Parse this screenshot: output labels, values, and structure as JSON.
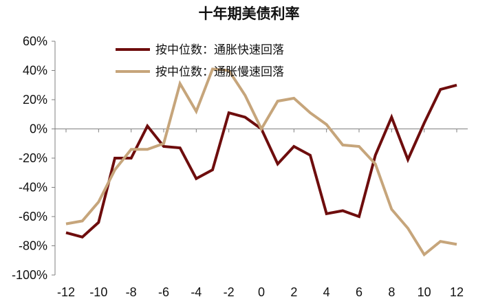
{
  "chart_data": {
    "type": "line",
    "title": "十年期美债利率",
    "xlabel": "",
    "ylabel": "",
    "x": [
      -12,
      -11,
      -10,
      -9,
      -8,
      -7,
      -6,
      -5,
      -4,
      -3,
      -2,
      -1,
      0,
      1,
      2,
      3,
      4,
      5,
      6,
      7,
      8,
      9,
      10,
      11,
      12
    ],
    "xticks": [
      "-12",
      "-10",
      "-8",
      "-6",
      "-4",
      "-2",
      "0",
      "2",
      "4",
      "6",
      "8",
      "10",
      "12"
    ],
    "xtick_values": [
      -12,
      -10,
      -8,
      -6,
      -4,
      -2,
      0,
      2,
      4,
      6,
      8,
      10,
      12
    ],
    "yticks": [
      "60%",
      "40%",
      "20%",
      "0%",
      "-20%",
      "-40%",
      "-60%",
      "-80%",
      "-100%"
    ],
    "ytick_values": [
      60,
      40,
      20,
      0,
      -20,
      -40,
      -60,
      -80,
      -100
    ],
    "xlim": [
      -12,
      12
    ],
    "ylim": [
      -100,
      60
    ],
    "grid": false,
    "legend_position": "top-center",
    "series": [
      {
        "name": "按中位数：通胀快速回落",
        "color": "#6e0d0d",
        "values": [
          -71,
          -74,
          -64,
          -20,
          -20,
          2,
          -12,
          -13,
          -34,
          -28,
          11,
          8,
          0,
          -24,
          -12,
          -18,
          -58,
          -56,
          -60,
          -18,
          8,
          -21,
          4,
          27,
          30
        ]
      },
      {
        "name": "按中位数：通胀慢速回落",
        "color": "#c6a57b",
        "values": [
          -65,
          -63,
          -50,
          -28,
          -14,
          -14,
          -10,
          31,
          12,
          41,
          40,
          23,
          0,
          19,
          21,
          11,
          3,
          -11,
          -12,
          -24,
          -55,
          -68,
          -86,
          -77,
          -79
        ]
      }
    ]
  }
}
